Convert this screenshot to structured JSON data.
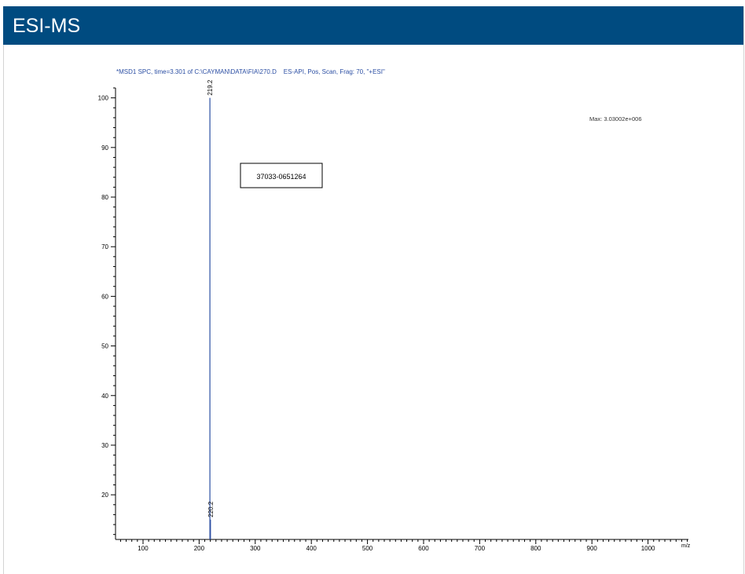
{
  "header": {
    "title": "ESI-MS"
  },
  "chart_data": {
    "type": "bar",
    "title": "*MSD1 SPC, time=3.301 of C:\\CAYMAN\\DATA\\FIA\\270.D    ES-API, Pos, Scan, Frag: 70, \"+ESI\"",
    "xlabel": "m/z",
    "ylabel": "",
    "xlim": [
      51,
      1072
    ],
    "ylim": [
      11,
      102
    ],
    "xticks": [
      100,
      200,
      300,
      400,
      500,
      600,
      700,
      800,
      900,
      1000
    ],
    "yticks": [
      20,
      30,
      40,
      50,
      60,
      70,
      80,
      90,
      100
    ],
    "x_minor_step": 10,
    "y_minor_step": 2,
    "grid": false,
    "max_label": "Max: 3.03002e+006",
    "sample_label": "37033-0651264",
    "line_color": "#2b4ea3",
    "peaks": [
      {
        "mz": 219.2,
        "intensity": 100,
        "label": "219.2"
      },
      {
        "mz": 220.2,
        "intensity": 15,
        "label": "220.2"
      }
    ]
  }
}
